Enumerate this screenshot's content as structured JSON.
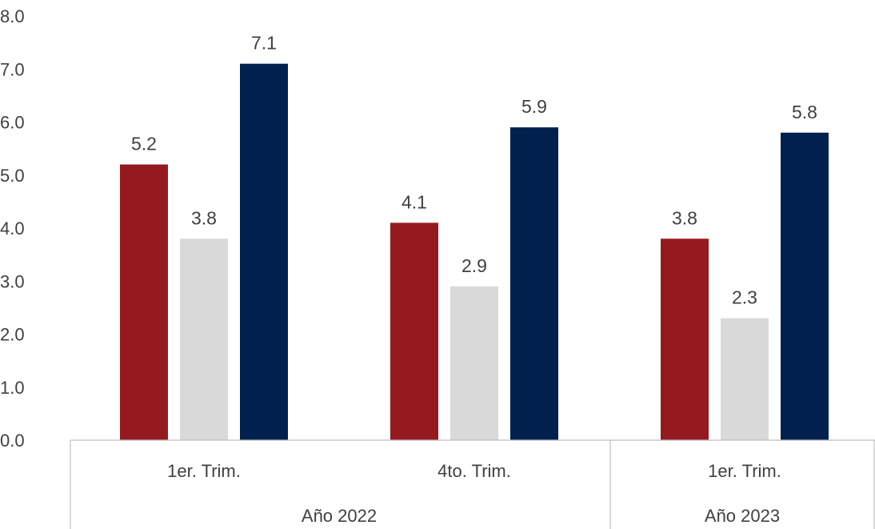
{
  "chart_data": {
    "type": "bar",
    "categories": [
      "1er. Trim.",
      "4to. Trim.",
      "1er. Trim."
    ],
    "groups": [
      {
        "label": "Año 2022",
        "categories": [
          0,
          1
        ]
      },
      {
        "label": "Año 2023",
        "categories": [
          2
        ]
      }
    ],
    "series": [
      {
        "values": [
          5.2,
          4.1,
          3.8
        ],
        "color": "#951a20"
      },
      {
        "values": [
          3.8,
          2.9,
          2.3
        ],
        "color": "#d9d9d9"
      },
      {
        "values": [
          7.1,
          5.9,
          5.8
        ],
        "color": "#00204d"
      }
    ],
    "data_labels": [
      [
        "5.2",
        "4.1",
        "3.8"
      ],
      [
        "3.8",
        "2.9",
        "2.3"
      ],
      [
        "7.1",
        "5.9",
        "5.8"
      ]
    ],
    "yticks": [
      "0.0",
      "1.0",
      "2.0",
      "3.0",
      "4.0",
      "5.0",
      "6.0",
      "7.0",
      "8.0"
    ],
    "ylim": [
      0,
      8
    ],
    "grid": false,
    "title": "",
    "xlabel": "",
    "ylabel": ""
  }
}
